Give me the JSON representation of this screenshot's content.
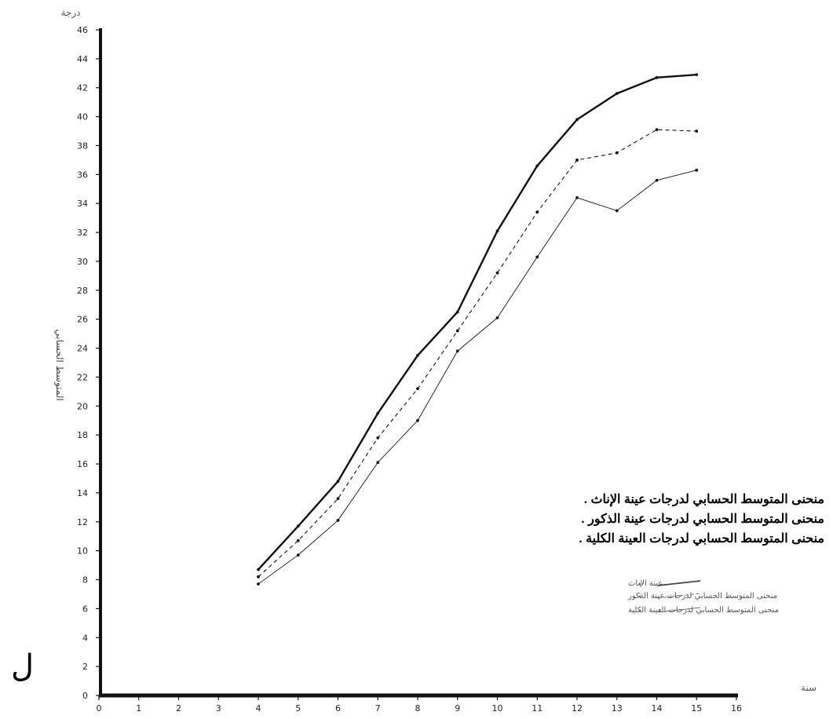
{
  "chart_data": {
    "type": "line",
    "ylabel": "المتوسط الحسابي",
    "y_unit": "درجة",
    "x_unit": "سنة",
    "xlim": [
      0,
      16
    ],
    "ylim": [
      0,
      46
    ],
    "x_ticks": [
      0,
      1,
      2,
      3,
      4,
      5,
      6,
      7,
      8,
      9,
      10,
      11,
      12,
      13,
      14,
      15,
      16
    ],
    "y_ticks": [
      0,
      2,
      4,
      6,
      8,
      10,
      12,
      14,
      16,
      18,
      20,
      22,
      24,
      26,
      28,
      30,
      32,
      34,
      36,
      38,
      40,
      42,
      44,
      46
    ],
    "grid": false,
    "x": [
      4,
      5,
      6,
      7,
      8,
      9,
      10,
      11,
      12,
      13,
      14,
      15
    ],
    "series": [
      {
        "name": "عينة الإناث",
        "style": "solid-thick",
        "values": [
          8.7,
          11.7,
          14.8,
          19.5,
          23.5,
          26.5,
          32.1,
          36.6,
          39.8,
          41.6,
          42.7,
          42.9
        ]
      },
      {
        "name": "منحنى المتوسط الحسابي لدرجات عينة الذكور",
        "style": "dashed",
        "values": [
          8.2,
          10.7,
          13.6,
          17.8,
          21.2,
          25.2,
          29.2,
          33.4,
          37.0,
          37.5,
          39.1,
          39.0
        ]
      },
      {
        "name": "منحنى المتوسط الحسابي لدرجات العينة الكلية",
        "style": "solid-thin",
        "values": [
          7.7,
          9.7,
          12.1,
          16.1,
          19.0,
          23.8,
          26.1,
          30.3,
          34.4,
          33.5,
          35.6,
          36.3
        ]
      }
    ],
    "legend_position": "bottom-right"
  },
  "printed_legend": [
    "منحنى المتوسط الحسابي لدرجات عينة الإناث .",
    "منحنى المتوسط الحسابي لدرجات عينة الذكور .",
    "منحنى المتوسط الحسابي لدرجات العينة الكلية ."
  ],
  "corner_glyph": "ل",
  "colors": {
    "ink": "#111111",
    "faded_ink": "#666666",
    "background": "#ffffff"
  }
}
